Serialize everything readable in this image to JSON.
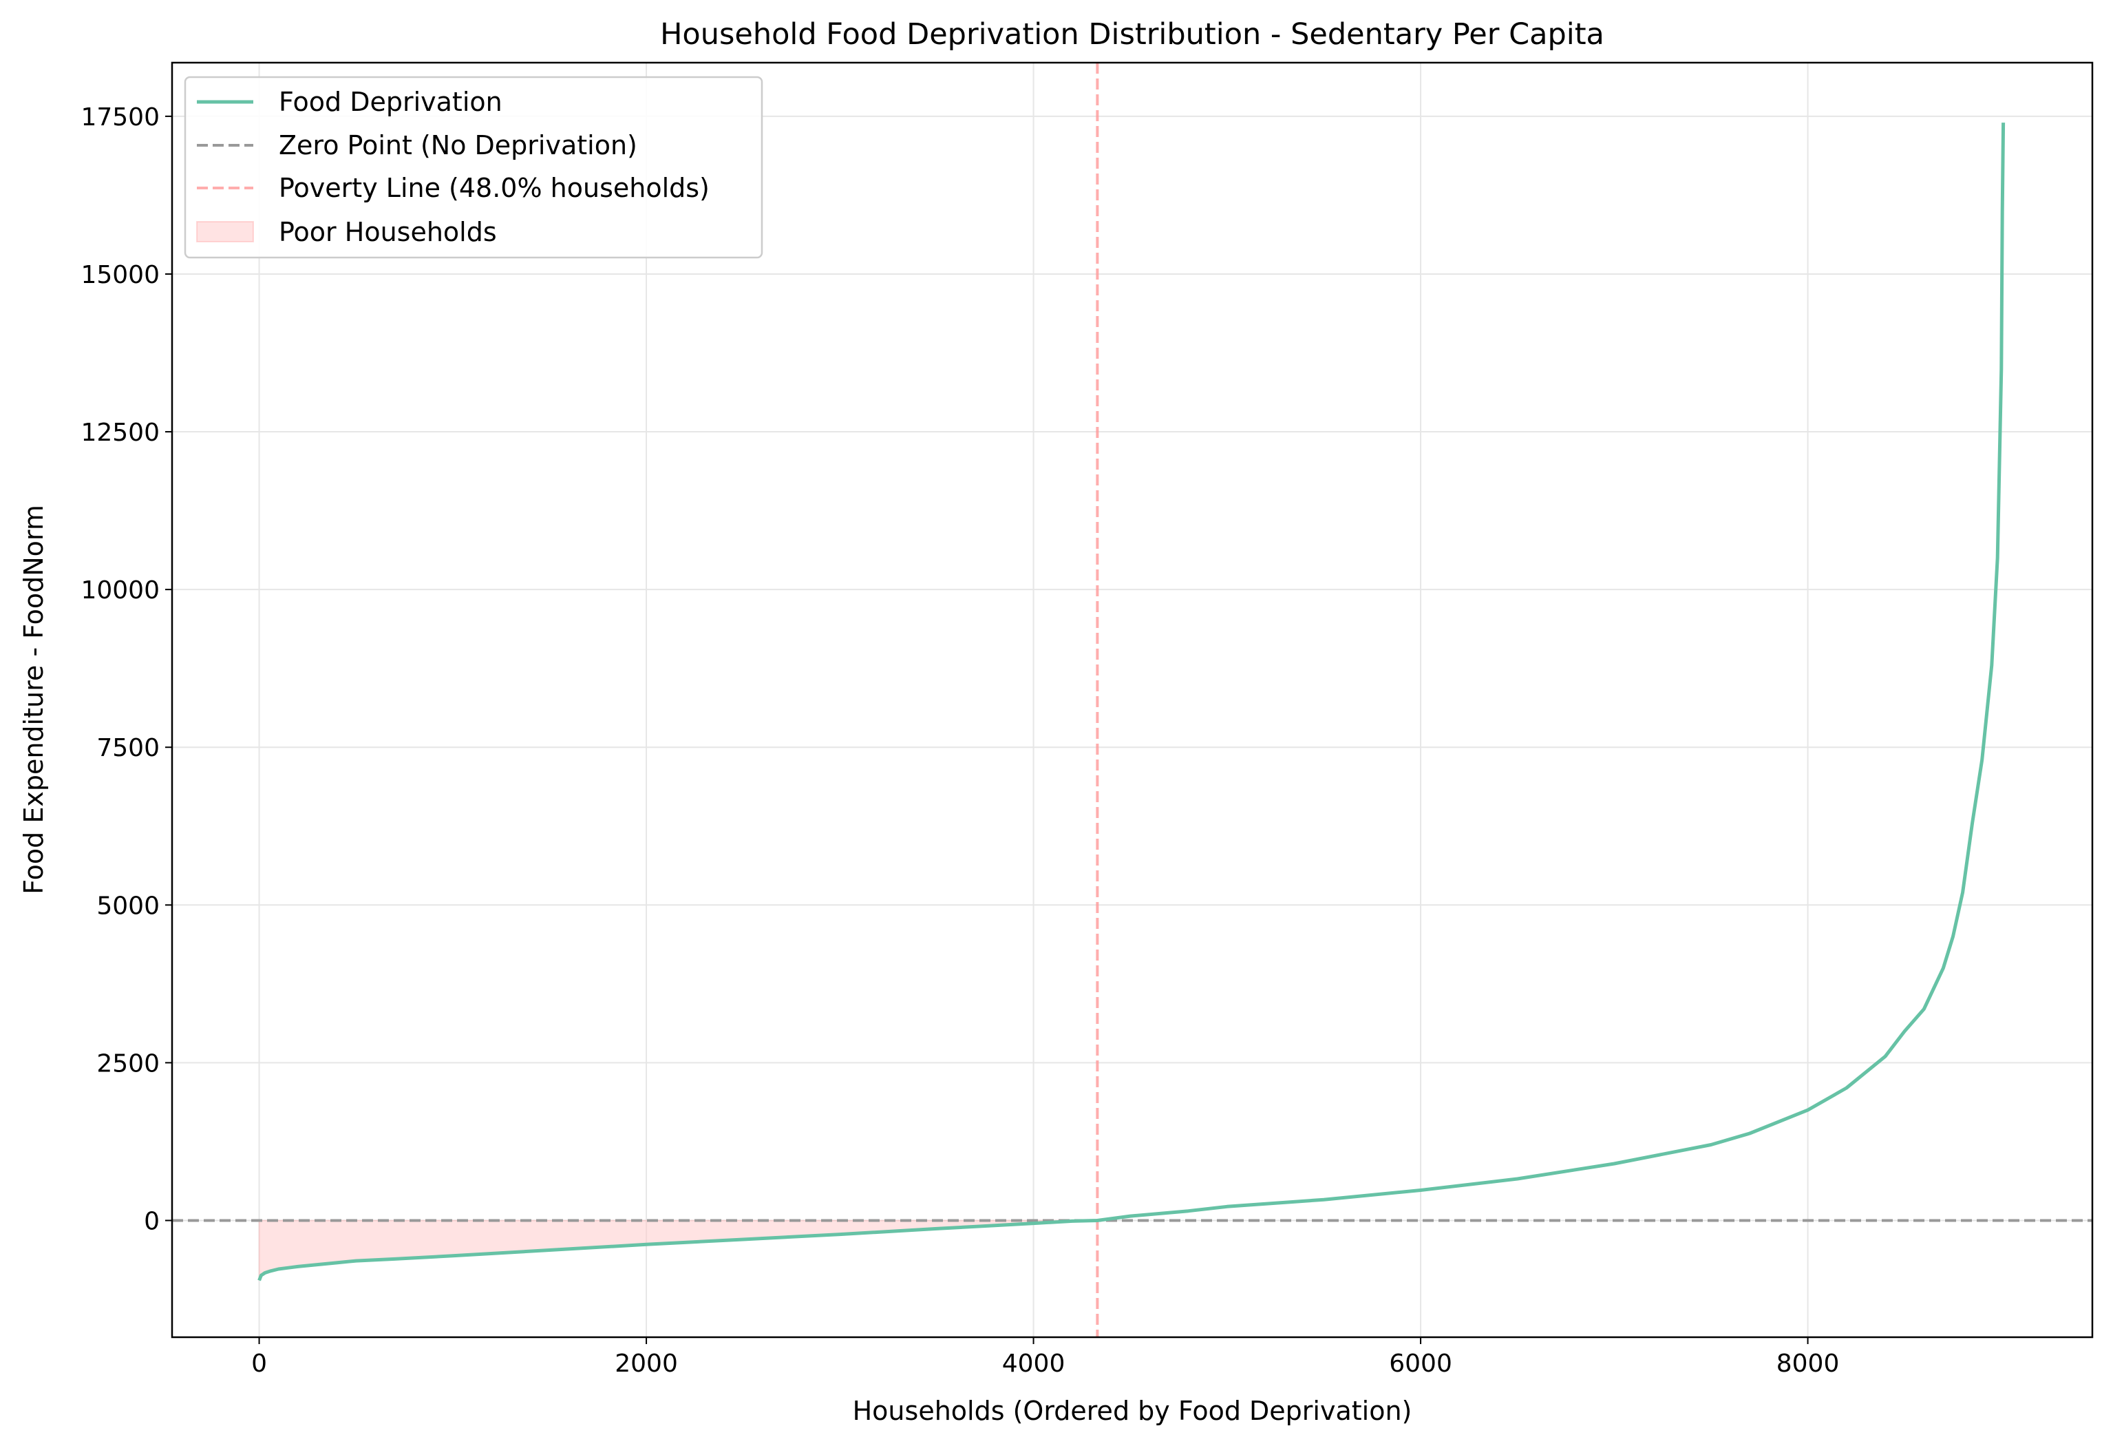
{
  "chart_data": {
    "type": "line",
    "title": "Household Food Deprivation Distribution - Sedentary Per Capita",
    "xlabel": "Households (Ordered by Food Deprivation)",
    "ylabel": "Food Expenditure - FoodNorm",
    "xlim": [
      -450,
      9470
    ],
    "ylim": [
      -1850,
      18350
    ],
    "xticks": [
      0,
      2000,
      4000,
      6000,
      8000
    ],
    "yticks": [
      0,
      2500,
      5000,
      7500,
      10000,
      12500,
      15000,
      17500
    ],
    "grid": true,
    "legend_position": "top-left",
    "colors": {
      "line": "#66c2a5",
      "zero_line": "#999999",
      "poverty_line": "#ff9999",
      "fill": "#ffcccc"
    },
    "series": [
      {
        "name": "Food Deprivation",
        "x": [
          0,
          10,
          30,
          60,
          100,
          150,
          200,
          300,
          400,
          500,
          700,
          1000,
          1500,
          2000,
          2500,
          3000,
          3500,
          3800,
          4000,
          4200,
          4330,
          4500,
          4800,
          5000,
          5500,
          6000,
          6500,
          7000,
          7500,
          7700,
          8000,
          8200,
          8400,
          8500,
          8600,
          8700,
          8750,
          8800,
          8850,
          8900,
          8950,
          8980,
          9000,
          9005,
          9010
        ],
        "y": [
          -950,
          -870,
          -830,
          -800,
          -770,
          -750,
          -730,
          -700,
          -670,
          -640,
          -610,
          -560,
          -470,
          -380,
          -300,
          -220,
          -130,
          -80,
          -45,
          -10,
          0,
          70,
          150,
          220,
          330,
          480,
          660,
          900,
          1200,
          1380,
          1750,
          2100,
          2600,
          3000,
          3350,
          4000,
          4500,
          5200,
          6300,
          7300,
          8800,
          10500,
          13500,
          16000,
          17400
        ]
      },
      {
        "name": "Zero Point (No Deprivation)",
        "y": 0
      },
      {
        "name": "Poverty Line (48.0% households)",
        "x": 4330
      },
      {
        "name": "Poor Households",
        "x_range": [
          0,
          4330
        ]
      }
    ]
  }
}
